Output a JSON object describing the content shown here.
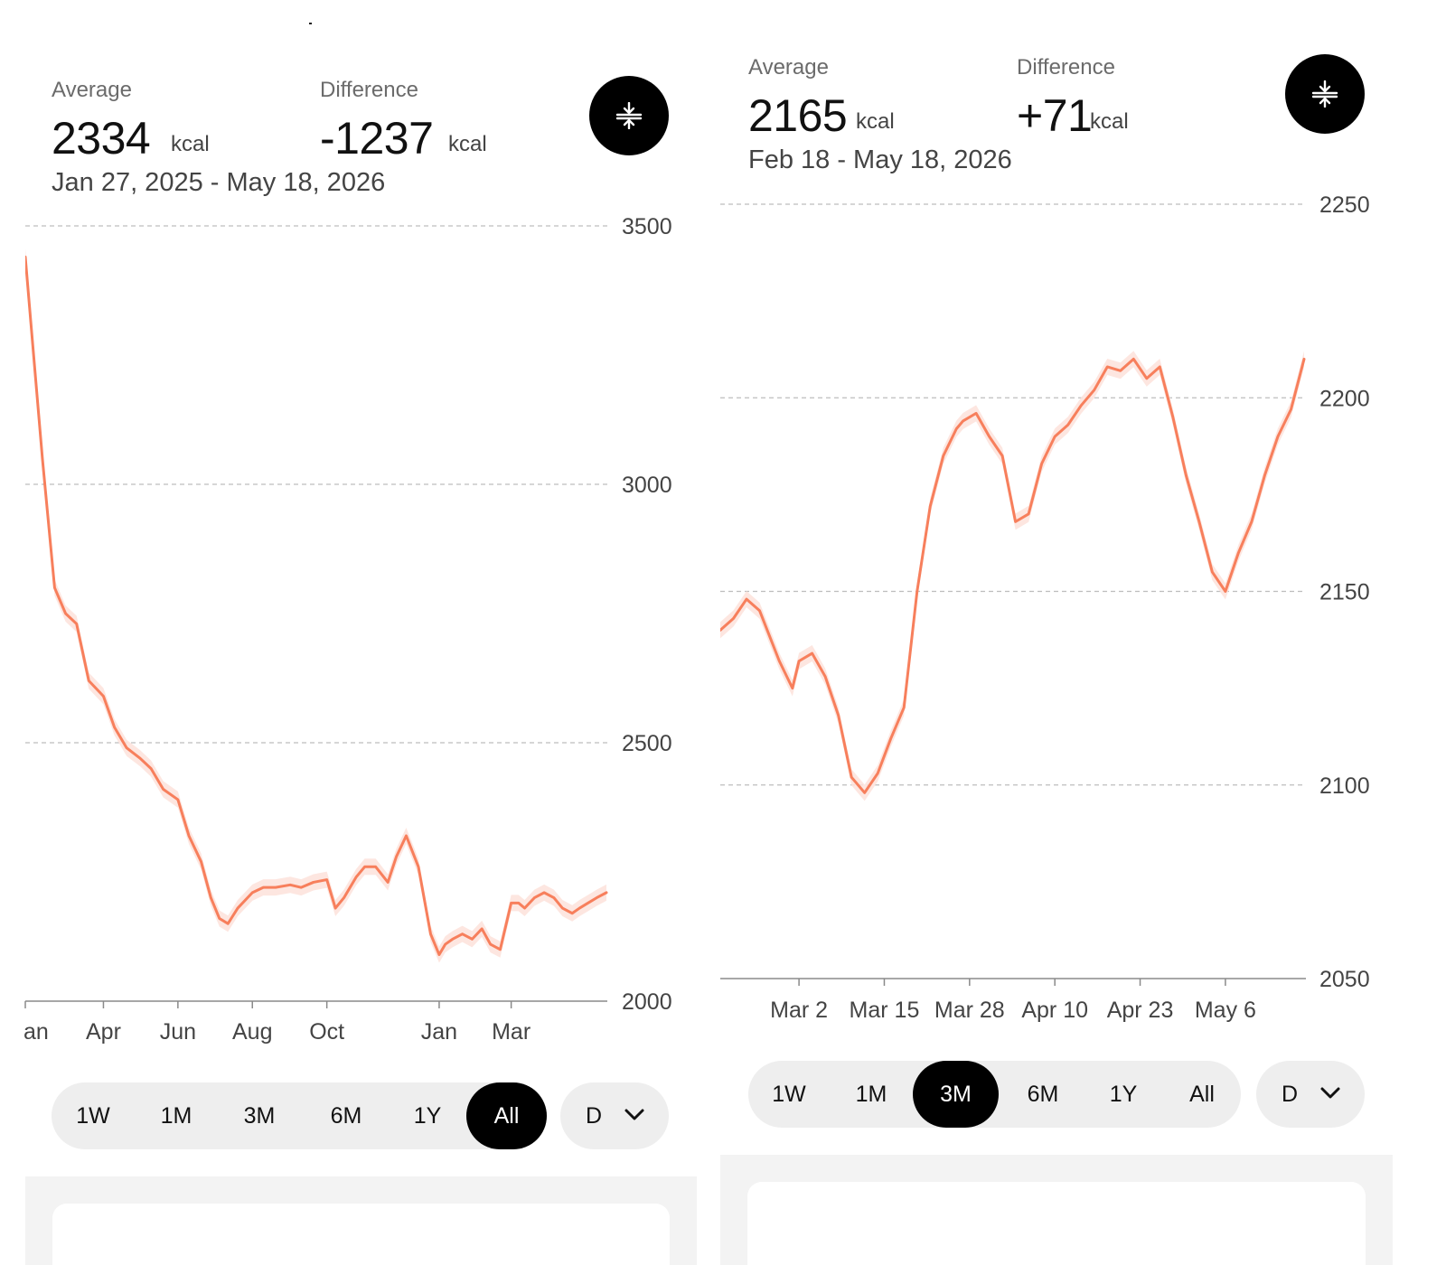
{
  "colors": {
    "line": "#f77f5c",
    "band": "#fde2da",
    "grid": "#bdbdbd",
    "axis": "#8a8a8a",
    "active": "#000000",
    "pill": "#eeeeee"
  },
  "icons": {
    "compare": "compress-vertical-icon",
    "dropdown": "chevron-down-icon"
  },
  "panels": [
    {
      "average_label": "Average",
      "average_value": "2334",
      "average_unit": "kcal",
      "difference_label": "Difference",
      "difference_value": "-1237",
      "difference_unit": "kcal",
      "date_range": "Jan 27, 2025 - May 18, 2026",
      "ranges": [
        "1W",
        "1M",
        "3M",
        "6M",
        "1Y",
        "All"
      ],
      "active_range": "All",
      "dropdown_label": "D"
    },
    {
      "average_label": "Average",
      "average_value": "2165",
      "average_unit": "kcal",
      "difference_label": "Difference",
      "difference_value": "+71",
      "difference_unit": "kcal",
      "date_range": "Feb 18 - May 18, 2026",
      "ranges": [
        "1W",
        "1M",
        "3M",
        "6M",
        "1Y",
        "All"
      ],
      "active_range": "3M",
      "dropdown_label": "D"
    }
  ],
  "chart_data": [
    {
      "type": "line",
      "unit": "kcal",
      "x_tick_labels": [
        "an",
        "Apr",
        "Jun",
        "Aug",
        "Oct",
        "Jan",
        "Mar"
      ],
      "x_ticks": [
        "2025-01-27",
        "2025-04-01",
        "2025-06-01",
        "2025-08-01",
        "2025-10-01",
        "2026-01-01",
        "2026-03-01"
      ],
      "y_ticks": [
        2000,
        2500,
        3000,
        3500
      ],
      "ylim": [
        2000,
        3500
      ],
      "xlim": [
        "2025-01-27",
        "2026-05-18"
      ],
      "grid": true,
      "band": true,
      "series": [
        {
          "x": [
            "2025-01-27",
            "2025-02-01",
            "2025-02-10",
            "2025-02-20",
            "2025-03-01",
            "2025-03-10",
            "2025-03-20",
            "2025-04-01",
            "2025-04-10",
            "2025-04-20",
            "2025-05-01",
            "2025-05-10",
            "2025-05-20",
            "2025-06-01",
            "2025-06-10",
            "2025-06-20",
            "2025-06-28",
            "2025-07-05",
            "2025-07-12",
            "2025-07-20",
            "2025-08-01",
            "2025-08-10",
            "2025-08-20",
            "2025-09-01",
            "2025-09-10",
            "2025-09-20",
            "2025-10-01",
            "2025-10-08",
            "2025-10-15",
            "2025-10-25",
            "2025-11-01",
            "2025-11-10",
            "2025-11-20",
            "2025-11-27",
            "2025-12-05",
            "2025-12-15",
            "2025-12-25",
            "2026-01-01",
            "2026-01-06",
            "2026-01-12",
            "2026-01-20",
            "2026-01-28",
            "2026-02-05",
            "2026-02-12",
            "2026-02-20",
            "2026-03-01",
            "2026-03-07",
            "2026-03-12",
            "2026-03-20",
            "2026-03-28",
            "2026-04-05",
            "2026-04-12",
            "2026-04-20",
            "2026-04-26",
            "2026-05-03",
            "2026-05-10",
            "2026-05-18"
          ],
          "y": [
            3440,
            3300,
            3050,
            2800,
            2750,
            2730,
            2620,
            2590,
            2530,
            2490,
            2470,
            2450,
            2410,
            2390,
            2320,
            2270,
            2200,
            2160,
            2150,
            2180,
            2210,
            2220,
            2220,
            2225,
            2220,
            2230,
            2235,
            2180,
            2200,
            2240,
            2260,
            2260,
            2230,
            2280,
            2320,
            2260,
            2130,
            2090,
            2110,
            2120,
            2130,
            2120,
            2140,
            2110,
            2100,
            2190,
            2190,
            2180,
            2200,
            2210,
            2200,
            2180,
            2170,
            2180,
            2190,
            2200,
            2210
          ]
        }
      ]
    },
    {
      "type": "line",
      "unit": "kcal",
      "x_tick_labels": [
        "Mar 2",
        "Mar 15",
        "Mar 28",
        "Apr 10",
        "Apr 23",
        "May 6"
      ],
      "x_ticks": [
        "2026-03-02",
        "2026-03-15",
        "2026-03-28",
        "2026-04-10",
        "2026-04-23",
        "2026-05-06"
      ],
      "y_ticks": [
        2050,
        2100,
        2150,
        2200,
        2250
      ],
      "ylim": [
        2050,
        2250
      ],
      "xlim": [
        "2026-02-18",
        "2026-05-18"
      ],
      "grid": true,
      "band": true,
      "series": [
        {
          "x": [
            "2026-02-18",
            "2026-02-20",
            "2026-02-22",
            "2026-02-24",
            "2026-02-27",
            "2026-03-01",
            "2026-03-02",
            "2026-03-04",
            "2026-03-06",
            "2026-03-08",
            "2026-03-10",
            "2026-03-12",
            "2026-03-14",
            "2026-03-16",
            "2026-03-18",
            "2026-03-20",
            "2026-03-22",
            "2026-03-24",
            "2026-03-26",
            "2026-03-27",
            "2026-03-29",
            "2026-03-31",
            "2026-04-02",
            "2026-04-04",
            "2026-04-06",
            "2026-04-08",
            "2026-04-10",
            "2026-04-12",
            "2026-04-14",
            "2026-04-16",
            "2026-04-18",
            "2026-04-20",
            "2026-04-22",
            "2026-04-24",
            "2026-04-26",
            "2026-04-28",
            "2026-04-30",
            "2026-05-02",
            "2026-05-04",
            "2026-05-06",
            "2026-05-08",
            "2026-05-10",
            "2026-05-12",
            "2026-05-14",
            "2026-05-16",
            "2026-05-18"
          ],
          "y": [
            2140,
            2143,
            2148,
            2145,
            2132,
            2125,
            2132,
            2134,
            2128,
            2118,
            2102,
            2098,
            2103,
            2112,
            2120,
            2150,
            2172,
            2185,
            2192,
            2194,
            2196,
            2190,
            2185,
            2168,
            2170,
            2183,
            2190,
            2193,
            2198,
            2202,
            2208,
            2207,
            2210,
            2205,
            2208,
            2195,
            2180,
            2168,
            2155,
            2150,
            2160,
            2168,
            2180,
            2190,
            2197,
            2210
          ]
        }
      ]
    }
  ]
}
